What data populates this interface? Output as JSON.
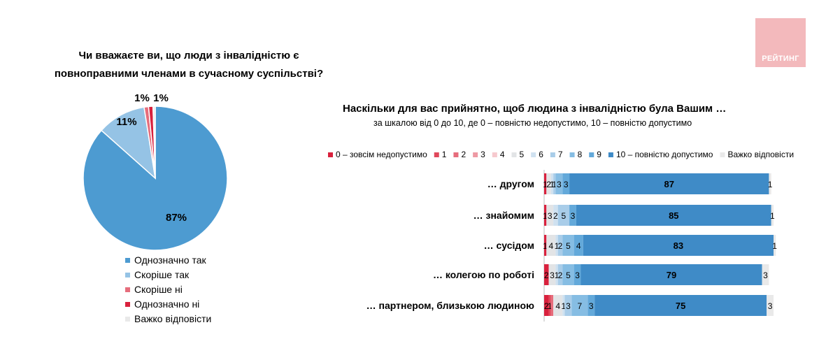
{
  "brand": {
    "logo_text": "РЕЙТИНГ"
  },
  "colors": {
    "c0": "#d9213d",
    "c1": "#e0485b",
    "c2": "#e66d7c",
    "c3": "#ee9aa4",
    "c4": "#f6c9ce",
    "c5": "#e2e4e6",
    "c6": "#cfe1f0",
    "c7": "#a9cde9",
    "c8": "#86bde3",
    "c9": "#63a9da",
    "c10": "#3f8bc7",
    "dk": "#e9e9e9",
    "pie_main": "#4d9bd1",
    "pie_rather_yes": "#95c3e5"
  },
  "chart_data": [
    {
      "type": "pie",
      "title": "Чи вважаєте ви, що люди з інвалідністю є повноправними  членами в сучасному суспільстві?",
      "slices": [
        {
          "label": "Однозначно так",
          "value": 87,
          "data_label": "87%",
          "color_key": "pie_main"
        },
        {
          "label": "Скоріше так",
          "value": 11,
          "data_label": "11%",
          "color_key": "pie_rather_yes"
        },
        {
          "label": "Скоріше ні",
          "value": 1,
          "data_label": "1%",
          "color_key": "c2"
        },
        {
          "label": "Однозначно ні",
          "value": 1,
          "data_label": "1%",
          "color_key": "c0"
        },
        {
          "label": "Важко відповісти",
          "value": 0.5,
          "data_label": "",
          "color_key": "dk"
        }
      ],
      "legend": [
        "Однозначно так",
        "Скоріше так",
        "Скоріше ні",
        "Однозначно ні",
        "Важко відповісти"
      ],
      "legend_position": "bottom"
    },
    {
      "type": "bar",
      "orientation": "horizontal",
      "stacked": true,
      "title": "Наскільки для вас прийнятно, щоб людина з інвалідністю була Вашим …",
      "subtitle": "за шкалою від 0 до 10, де 0 – повністю недопустимо, 10 – повністю допустимо",
      "legend_position": "top",
      "legend_keys": [
        "c0",
        "c1",
        "c2",
        "c3",
        "c4",
        "c5",
        "c6",
        "c7",
        "c8",
        "c9",
        "c10",
        "dk"
      ],
      "legend_labels": [
        "0 – зовсім недопустимо",
        "1",
        "2",
        "3",
        "4",
        "5",
        "6",
        "7",
        "8",
        "9",
        "10 – повністю допустимо",
        "Важко відповісти"
      ],
      "categories": [
        "… другом",
        "… знайомим",
        "… сусідом",
        "… колегою по роботі",
        "… партнером, близькою людиною"
      ],
      "values": [
        [
          1,
          0,
          0,
          0,
          0,
          2,
          1,
          1,
          3,
          3,
          87,
          1
        ],
        [
          1,
          0,
          0,
          0,
          0,
          3,
          2,
          5,
          0,
          3,
          85,
          1
        ],
        [
          1,
          0,
          0,
          0,
          0,
          4,
          1,
          2,
          5,
          4,
          83,
          1
        ],
        [
          2,
          0,
          0,
          0,
          0,
          3,
          1,
          2,
          5,
          3,
          79,
          3
        ],
        [
          2,
          1,
          1,
          0,
          0,
          4,
          1,
          3,
          7,
          3,
          75,
          3
        ]
      ],
      "labels": [
        [
          "1",
          "",
          "",
          "",
          "",
          "2",
          "1",
          "1",
          "3",
          "3",
          "87",
          "1"
        ],
        [
          "1",
          "",
          "",
          "",
          "",
          "3",
          "2",
          "5",
          "",
          "3",
          "85",
          "1"
        ],
        [
          "1",
          "",
          "",
          "",
          "",
          "4",
          "1",
          "2",
          "5",
          "4",
          "83",
          "1"
        ],
        [
          "2",
          "",
          "",
          "",
          "",
          "3",
          "1",
          "2",
          "5",
          "3",
          "79",
          "3"
        ],
        [
          "2",
          "1",
          "",
          "",
          "",
          "4",
          "1",
          "3",
          "7",
          "3",
          "75",
          "3"
        ]
      ]
    }
  ]
}
